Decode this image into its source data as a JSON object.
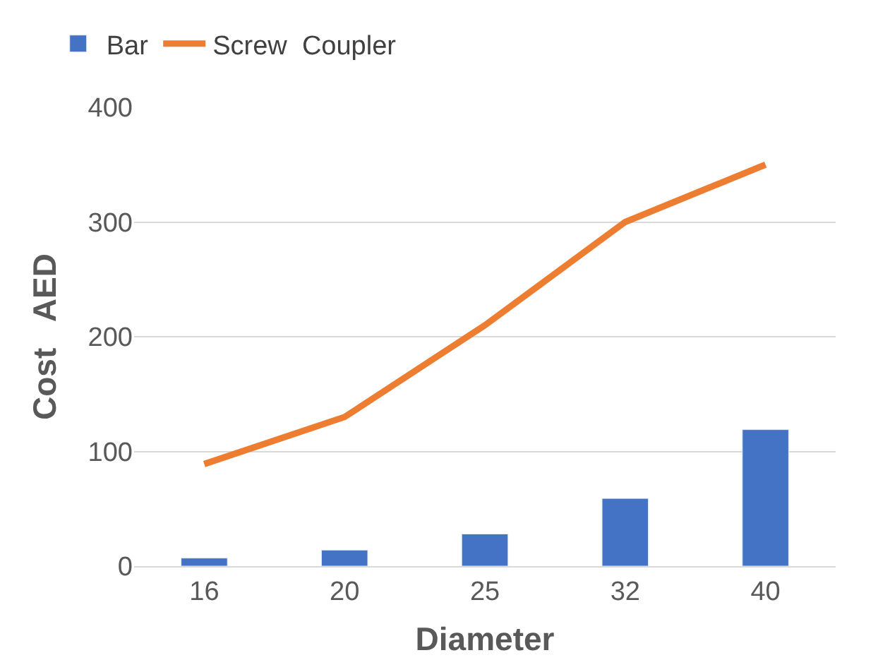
{
  "chart_data": {
    "type": "bar",
    "xlabel": "Diameter",
    "ylabel": "Cost   AED",
    "categories": [
      "16",
      "20",
      "25",
      "32",
      "40"
    ],
    "series": [
      {
        "name": "Bar",
        "color": "#4472c4",
        "values": [
          7,
          14,
          28,
          59,
          119
        ]
      },
      {
        "name": "Screw  Coupler",
        "type": "line",
        "color": "#ed7d31",
        "values": [
          89,
          130,
          210,
          300,
          350
        ],
        "marker": "none",
        "line_style": "solid"
      }
    ],
    "ylim": [
      0,
      400
    ],
    "yticks": [
      0,
      100,
      200,
      300,
      400
    ],
    "grid": "y",
    "legend": "top left"
  }
}
